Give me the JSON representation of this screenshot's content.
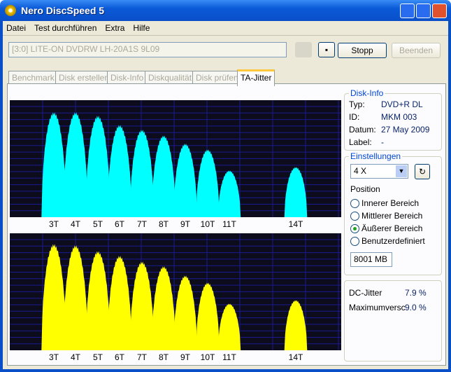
{
  "window": {
    "title": "Nero DiscSpeed 5"
  },
  "menu": [
    "Datei",
    "Test durchführen",
    "Extra",
    "Hilfe"
  ],
  "toolbar": {
    "drive": "[3:0]   LITE-ON DVDRW LH-20A1S 9L09",
    "stop": "Stopp",
    "exit": "Beenden"
  },
  "tabs": [
    "Benchmark",
    "Disk erstellen",
    "Disk-Info",
    "Diskqualität",
    "Disk prüfen",
    "TA-Jitter"
  ],
  "active_tab": 5,
  "charts": [
    {
      "type": "histogram",
      "color": "#00ffff",
      "categories": [
        "3T",
        "4T",
        "5T",
        "6T",
        "7T",
        "8T",
        "9T",
        "10T",
        "11T",
        "14T"
      ],
      "peaks": [
        90,
        90,
        87,
        79,
        75,
        70,
        63,
        58,
        40,
        43
      ]
    },
    {
      "type": "histogram",
      "color": "#ffff00",
      "categories": [
        "3T",
        "4T",
        "5T",
        "6T",
        "7T",
        "8T",
        "9T",
        "10T",
        "11T",
        "14T"
      ],
      "peaks": [
        91,
        90,
        85,
        81,
        76,
        72,
        64,
        58,
        40,
        43
      ]
    }
  ],
  "disk_info": {
    "title": "Disk-Info",
    "rows": [
      [
        "Typ:",
        "DVD+R DL"
      ],
      [
        "ID:",
        "MKM 003"
      ],
      [
        "Datum:",
        "27 May 2009"
      ],
      [
        "Label:",
        "-"
      ]
    ]
  },
  "settings": {
    "title": "Einstellungen",
    "speed": "4 X",
    "position_label": "Position",
    "options": [
      "Innerer Bereich",
      "Mittlerer Bereich",
      "Äußerer Bereich",
      "Benutzerdefiniert"
    ],
    "selected": 2,
    "size": "8001 MB"
  },
  "results": {
    "rows": [
      [
        "DC-Jitter",
        "7.9 %"
      ],
      [
        "Maximumversc",
        "9.0 %"
      ]
    ]
  }
}
